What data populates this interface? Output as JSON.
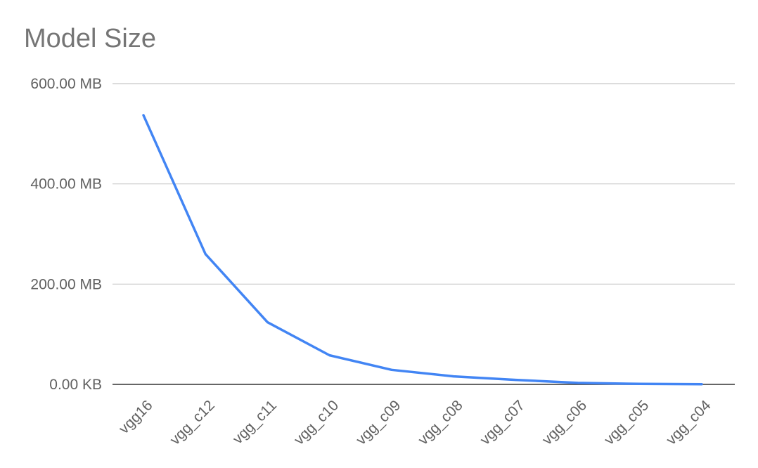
{
  "chart_data": {
    "type": "line",
    "title": "Model Size",
    "xlabel": "",
    "ylabel": "",
    "categories": [
      "vgg16",
      "vgg_c12",
      "vgg_c11",
      "vgg_c10",
      "vgg_c09",
      "vgg_c08",
      "vgg_c07",
      "vgg_c06",
      "vgg_c05",
      "vgg_c04"
    ],
    "series": [
      {
        "values": [
          537,
          260,
          124,
          58,
          29,
          16,
          9,
          3,
          1,
          0.3
        ]
      }
    ],
    "y_unit": "MB",
    "ylim": [
      0,
      600
    ],
    "y_ticks": [
      0,
      200,
      400,
      600
    ],
    "y_tick_labels": [
      "0.00 KB",
      "200.00 MB",
      "400.00 MB",
      "600.00 MB"
    ],
    "grid": true,
    "legend": "none",
    "line_color": "#4285f4",
    "grid_color": "#c8c8c8",
    "baseline_color": "#333333"
  }
}
